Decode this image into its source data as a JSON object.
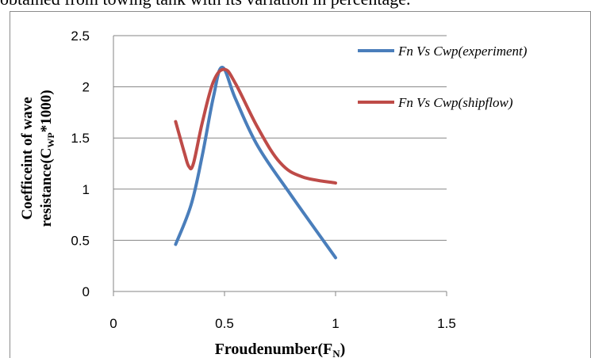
{
  "caption": "obtained from towing tank with its variation in percentage.",
  "chart_data": {
    "type": "line",
    "xlabel": "Froudenumber(F",
    "xlabel_sub": "N",
    "xlabel_end": ")",
    "ylabel_line1": "Coefficeint of wave",
    "ylabel_line2_pre": "resistance(C",
    "ylabel_line2_sub": "WP",
    "ylabel_line2_post": "*1000)",
    "xlim": [
      0,
      1.5
    ],
    "ylim": [
      0,
      2.5
    ],
    "xticks": [
      "0",
      "0.5",
      "1",
      "1.5"
    ],
    "yticks": [
      "0",
      "0.5",
      "1",
      "1.5",
      "2",
      "2.5"
    ],
    "grid": "horizontal",
    "legend_position": "right",
    "series": [
      {
        "name": "Fn Vs Cwp(experiment)",
        "color": "#4a7ebb",
        "x": [
          0.28,
          0.35,
          0.4,
          0.45,
          0.49,
          0.55,
          0.65,
          0.8,
          1.0
        ],
        "y": [
          0.46,
          0.85,
          1.33,
          1.9,
          2.19,
          1.88,
          1.42,
          0.94,
          0.33
        ]
      },
      {
        "name": "Fn Vs Cwp(shipflow)",
        "color": "#be4b48",
        "x": [
          0.28,
          0.32,
          0.34,
          0.36,
          0.4,
          0.45,
          0.5,
          0.55,
          0.65,
          0.75,
          0.85,
          1.0
        ],
        "y": [
          1.66,
          1.35,
          1.22,
          1.25,
          1.65,
          2.05,
          2.17,
          2.03,
          1.6,
          1.26,
          1.12,
          1.06
        ]
      }
    ]
  }
}
